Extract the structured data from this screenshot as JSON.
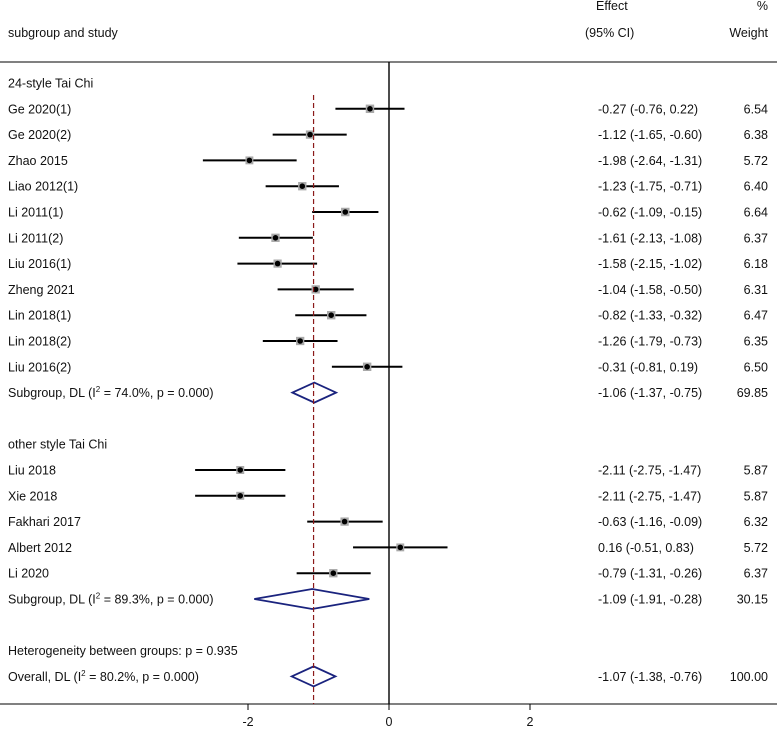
{
  "chart_data": {
    "type": "forest",
    "header": {
      "study_col": "subgroup and study",
      "effect_top": "Effect",
      "effect_bottom": "(95% CI)",
      "weight_top": "%",
      "weight_bottom": "Weight"
    },
    "xlim": [
      -3.05,
      3.0
    ],
    "x_ticks": [
      -2,
      0,
      2
    ],
    "x_tick_labels": [
      "-2",
      "0",
      "2"
    ],
    "null_line": 0,
    "overall_effect": -1.07,
    "colors": {
      "box": "#a9a9a9",
      "line": "#000000",
      "diamond": "#1a237e",
      "overall_line": "#8b1a1a"
    },
    "rows": [
      {
        "kind": "group",
        "label": "24-style Tai Chi"
      },
      {
        "kind": "study",
        "label": "Ge 2020(1)",
        "est": -0.27,
        "lo": -0.76,
        "hi": 0.22,
        "ci_text": "-0.27 (-0.76, 0.22)",
        "weight": 6.54,
        "weight_text": "6.54"
      },
      {
        "kind": "study",
        "label": "Ge 2020(2)",
        "est": -1.12,
        "lo": -1.65,
        "hi": -0.6,
        "ci_text": "-1.12 (-1.65, -0.60)",
        "weight": 6.38,
        "weight_text": "6.38"
      },
      {
        "kind": "study",
        "label": "Zhao 2015",
        "est": -1.98,
        "lo": -2.64,
        "hi": -1.31,
        "ci_text": "-1.98 (-2.64, -1.31)",
        "weight": 5.72,
        "weight_text": "5.72"
      },
      {
        "kind": "study",
        "label": "Liao 2012(1)",
        "est": -1.23,
        "lo": -1.75,
        "hi": -0.71,
        "ci_text": "-1.23 (-1.75, -0.71)",
        "weight": 6.4,
        "weight_text": "6.40"
      },
      {
        "kind": "study",
        "label": "Li 2011(1)",
        "est": -0.62,
        "lo": -1.09,
        "hi": -0.15,
        "ci_text": "-0.62 (-1.09, -0.15)",
        "weight": 6.64,
        "weight_text": "6.64"
      },
      {
        "kind": "study",
        "label": "Li 2011(2)",
        "est": -1.61,
        "lo": -2.13,
        "hi": -1.08,
        "ci_text": "-1.61 (-2.13, -1.08)",
        "weight": 6.37,
        "weight_text": "6.37"
      },
      {
        "kind": "study",
        "label": "Liu 2016(1)",
        "est": -1.58,
        "lo": -2.15,
        "hi": -1.02,
        "ci_text": "-1.58 (-2.15, -1.02)",
        "weight": 6.18,
        "weight_text": "6.18"
      },
      {
        "kind": "study",
        "label": "Zheng 2021",
        "est": -1.04,
        "lo": -1.58,
        "hi": -0.5,
        "ci_text": "-1.04 (-1.58, -0.50)",
        "weight": 6.31,
        "weight_text": "6.31"
      },
      {
        "kind": "study",
        "label": "Lin 2018(1)",
        "est": -0.82,
        "lo": -1.33,
        "hi": -0.32,
        "ci_text": "-0.82 (-1.33, -0.32)",
        "weight": 6.47,
        "weight_text": "6.47"
      },
      {
        "kind": "study",
        "label": "Lin 2018(2)",
        "est": -1.26,
        "lo": -1.79,
        "hi": -0.73,
        "ci_text": "-1.26 (-1.79, -0.73)",
        "weight": 6.35,
        "weight_text": "6.35"
      },
      {
        "kind": "study",
        "label": "Liu 2016(2)",
        "est": -0.31,
        "lo": -0.81,
        "hi": 0.19,
        "ci_text": "-0.31 (-0.81, 0.19)",
        "weight": 6.5,
        "weight_text": "6.50"
      },
      {
        "kind": "subtotal",
        "label_pre": "Subgroup, DL (I",
        "label_sup": "2",
        "label_post": " = 74.0%, p = 0.000)",
        "est": -1.06,
        "lo": -1.37,
        "hi": -0.75,
        "ci_text": "-1.06 (-1.37, -0.75)",
        "weight": 69.85,
        "weight_text": "69.85"
      },
      {
        "kind": "blank"
      },
      {
        "kind": "group",
        "label": "other style Tai Chi"
      },
      {
        "kind": "study",
        "label": "Liu 2018",
        "est": -2.11,
        "lo": -2.75,
        "hi": -1.47,
        "ci_text": "-2.11 (-2.75, -1.47)",
        "weight": 5.87,
        "weight_text": "5.87"
      },
      {
        "kind": "study",
        "label": "Xie 2018",
        "est": -2.11,
        "lo": -2.75,
        "hi": -1.47,
        "ci_text": "-2.11 (-2.75, -1.47)",
        "weight": 5.87,
        "weight_text": "5.87"
      },
      {
        "kind": "study",
        "label": "Fakhari 2017",
        "est": -0.63,
        "lo": -1.16,
        "hi": -0.09,
        "ci_text": "-0.63 (-1.16, -0.09)",
        "weight": 6.32,
        "weight_text": "6.32"
      },
      {
        "kind": "study",
        "label": "Albert 2012",
        "est": 0.16,
        "lo": -0.51,
        "hi": 0.83,
        "ci_text": "0.16 (-0.51, 0.83)",
        "weight": 5.72,
        "weight_text": "5.72"
      },
      {
        "kind": "study",
        "label": "Li 2020",
        "est": -0.79,
        "lo": -1.31,
        "hi": -0.26,
        "ci_text": "-0.79 (-1.31, -0.26)",
        "weight": 6.37,
        "weight_text": "6.37"
      },
      {
        "kind": "subtotal",
        "label_pre": "Subgroup, DL (I",
        "label_sup": "2",
        "label_post": " = 89.3%, p = 0.000)",
        "est": -1.09,
        "lo": -1.91,
        "hi": -0.28,
        "ci_text": "-1.09 (-1.91, -0.28)",
        "weight": 30.15,
        "weight_text": "30.15"
      },
      {
        "kind": "blank"
      },
      {
        "kind": "note",
        "label": "Heterogeneity between groups: p = 0.935"
      },
      {
        "kind": "overall",
        "label_pre": "Overall, DL (I",
        "label_sup": "2",
        "label_post": " = 80.2%, p = 0.000)",
        "est": -1.07,
        "lo": -1.38,
        "hi": -0.76,
        "ci_text": "-1.07 (-1.38, -0.76)",
        "weight": 100.0,
        "weight_text": "100.00"
      }
    ]
  }
}
